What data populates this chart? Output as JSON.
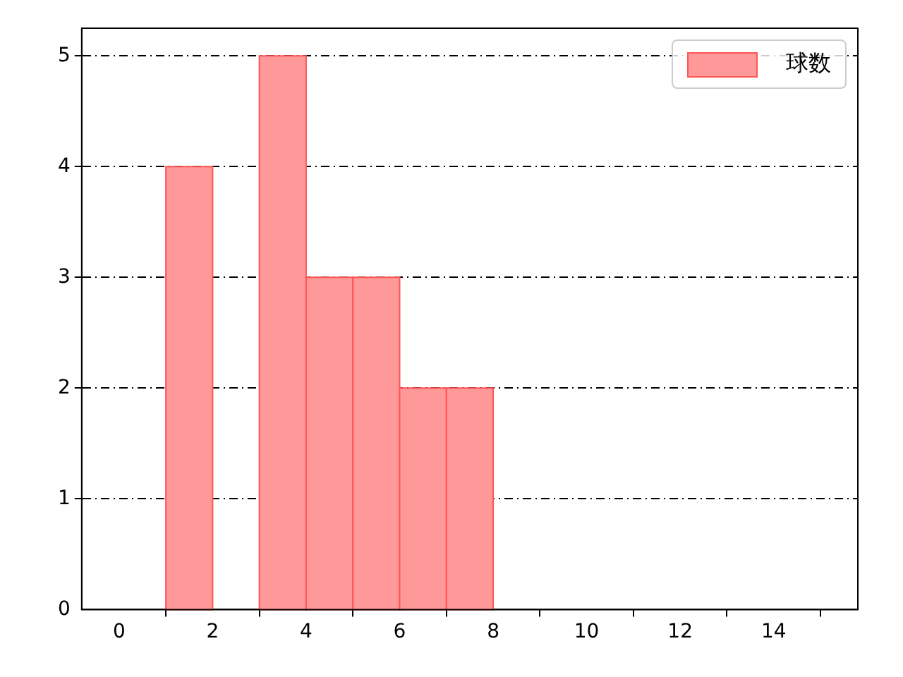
{
  "chart_data": {
    "type": "histogram",
    "bins": [
      1,
      2,
      3,
      4,
      5,
      6,
      7,
      8
    ],
    "series": [
      {
        "name": "球数",
        "color": "#ff9999",
        "values": [
          4,
          0,
          5,
          3,
          3,
          2,
          2
        ]
      }
    ],
    "xlim": [
      -0.8,
      15.8
    ],
    "xticks": [
      0,
      2,
      4,
      6,
      8,
      10,
      12,
      14
    ],
    "ylim": [
      0,
      5.25
    ],
    "yticks": [
      0,
      1,
      2,
      3,
      4,
      5
    ],
    "grid": "y",
    "legend": "top right"
  }
}
